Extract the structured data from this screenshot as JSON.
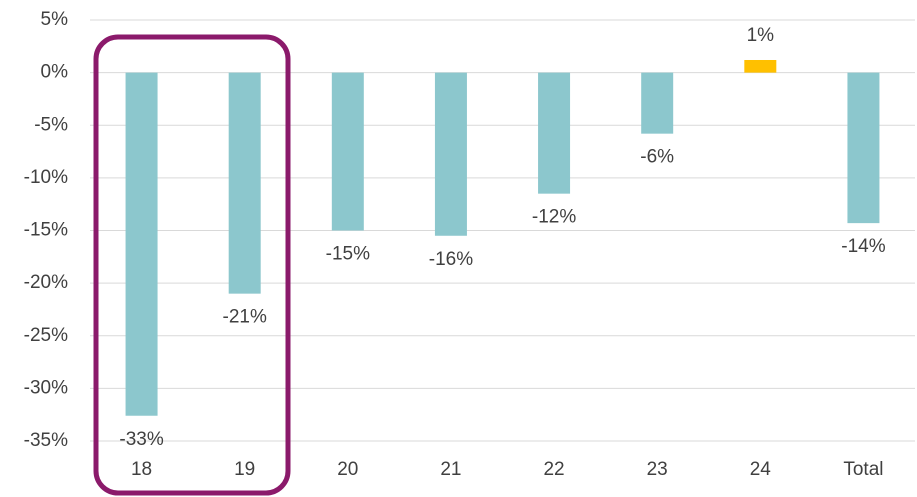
{
  "chart_data": {
    "type": "bar",
    "categories": [
      "18",
      "19",
      "20",
      "21",
      "22",
      "23",
      "24",
      "Total"
    ],
    "values": [
      -32.6,
      -21,
      -15,
      -15.5,
      -11.5,
      -5.8,
      1.2,
      -14.3
    ],
    "value_labels": [
      "-33%",
      "-21%",
      "-15%",
      "-16%",
      "-12%",
      "-6%",
      "1%",
      "-14%"
    ],
    "colors": [
      "#8cc7cd",
      "#8cc7cd",
      "#8cc7cd",
      "#8cc7cd",
      "#8cc7cd",
      "#8cc7cd",
      "#ffc000",
      "#8cc7cd"
    ],
    "ylim": [
      -35,
      5
    ],
    "yticks": [
      {
        "value": -35,
        "label": "-35%"
      },
      {
        "value": -30,
        "label": "-30%"
      },
      {
        "value": -25,
        "label": "-25%"
      },
      {
        "value": -20,
        "label": "-20%"
      },
      {
        "value": -15,
        "label": "-15%"
      },
      {
        "value": -10,
        "label": "-10%"
      },
      {
        "value": -5,
        "label": "-5%"
      },
      {
        "value": 0,
        "label": "0%"
      },
      {
        "value": 5,
        "label": "5%"
      }
    ],
    "grid": true
  }
}
